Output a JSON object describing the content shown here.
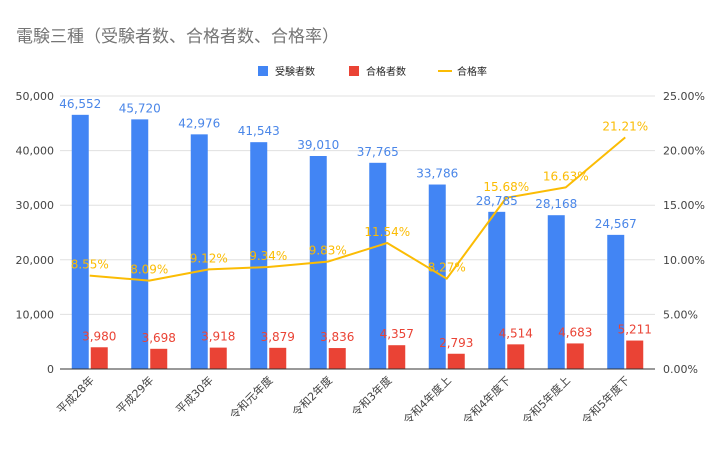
{
  "chart_data": {
    "type": "bar",
    "title": "電験三種（受験者数、合格者数、合格率）",
    "categories": [
      "平成28年",
      "平成29年",
      "平成30年",
      "令和元年度",
      "令和2年度",
      "令和3年度",
      "令和4年度上",
      "令和4年度下",
      "令和5年度上",
      "令和5年度下"
    ],
    "series": [
      {
        "name": "受験者数",
        "type": "bar",
        "axis": "left",
        "color": "#4285f4",
        "label_color": "#4a86e8",
        "values": [
          46552,
          45720,
          42976,
          41543,
          39010,
          37765,
          33786,
          28785,
          28168,
          24567
        ],
        "labels": [
          "46,552",
          "45,720",
          "42,976",
          "41,543",
          "39,010",
          "37,765",
          "33,786",
          "28,785",
          "28,168",
          "24,567"
        ]
      },
      {
        "name": "合格者数",
        "type": "bar",
        "axis": "left",
        "color": "#ea4335",
        "label_color": "#ea4335",
        "values": [
          3980,
          3698,
          3918,
          3879,
          3836,
          4357,
          2793,
          4514,
          4683,
          5211
        ],
        "labels": [
          "3,980",
          "3,698",
          "3,918",
          "3,879",
          "3,836",
          "4,357",
          "2,793",
          "4,514",
          "4,683",
          "5,211"
        ]
      },
      {
        "name": "合格率",
        "type": "line",
        "axis": "right",
        "color": "#fbbc04",
        "label_color": "#fbbc04",
        "values": [
          8.55,
          8.09,
          9.12,
          9.34,
          9.83,
          11.54,
          8.27,
          15.68,
          16.63,
          21.21
        ],
        "labels": [
          "8.55%",
          "8.09%",
          "9.12%",
          "9.34%",
          "9.83%",
          "11.54%",
          "8.27%",
          "15.68%",
          "16.63%",
          "21.21%"
        ]
      }
    ],
    "y_left": {
      "min": 0,
      "max": 50000,
      "ticks": [
        0,
        10000,
        20000,
        30000,
        40000,
        50000
      ],
      "tick_labels": [
        "0",
        "10,000",
        "20,000",
        "30,000",
        "40,000",
        "50,000"
      ]
    },
    "y_right": {
      "min": 0,
      "max": 25,
      "ticks": [
        0,
        5,
        10,
        15,
        20,
        25
      ],
      "tick_labels": [
        "0.00%",
        "5.00%",
        "10.00%",
        "15.00%",
        "20.00%",
        "25.00%"
      ]
    },
    "legend_position": "top",
    "grid": true,
    "axis_color": "#333333",
    "grid_color": "#e0e0e0"
  }
}
